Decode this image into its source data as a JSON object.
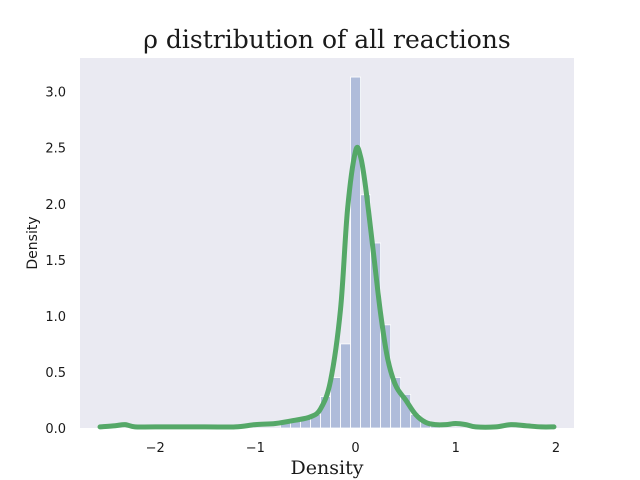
{
  "chart_data": {
    "type": "histogram",
    "title": "ρ distribution of all reactions",
    "xlabel": "Density",
    "ylabel": "Density",
    "xlim": [
      -2.75,
      2.18
    ],
    "ylim": [
      0,
      3.3
    ],
    "xticks": [
      -2,
      -1,
      0,
      1,
      2
    ],
    "xtick_labels": [
      "−2",
      "−1",
      "0",
      "1",
      "2"
    ],
    "yticks": [
      0.0,
      0.5,
      1.0,
      1.5,
      2.0,
      2.5,
      3.0
    ],
    "ytick_labels": [
      "0.0",
      "0.5",
      "1.0",
      "1.5",
      "2.0",
      "2.5",
      "3.0"
    ],
    "grid": false,
    "background": "#EAEAF2",
    "histogram": {
      "color": "#8FA3CC",
      "bins": [
        {
          "x0": -0.75,
          "x1": -0.65,
          "value": 0.06
        },
        {
          "x0": -0.65,
          "x1": -0.55,
          "value": 0.08
        },
        {
          "x0": -0.55,
          "x1": -0.45,
          "value": 0.09
        },
        {
          "x0": -0.45,
          "x1": -0.35,
          "value": 0.12
        },
        {
          "x0": -0.35,
          "x1": -0.25,
          "value": 0.28
        },
        {
          "x0": -0.25,
          "x1": -0.15,
          "value": 0.45
        },
        {
          "x0": -0.15,
          "x1": -0.05,
          "value": 0.75
        },
        {
          "x0": -0.05,
          "x1": 0.05,
          "value": 3.13
        },
        {
          "x0": 0.05,
          "x1": 0.15,
          "value": 2.08
        },
        {
          "x0": 0.15,
          "x1": 0.25,
          "value": 1.65
        },
        {
          "x0": 0.25,
          "x1": 0.35,
          "value": 0.92
        },
        {
          "x0": 0.35,
          "x1": 0.45,
          "value": 0.45
        },
        {
          "x0": 0.45,
          "x1": 0.55,
          "value": 0.3
        },
        {
          "x0": 0.55,
          "x1": 0.65,
          "value": 0.12
        },
        {
          "x0": 0.65,
          "x1": 0.75,
          "value": 0.06
        },
        {
          "x0": 0.75,
          "x1": 0.85,
          "value": 0.04
        }
      ]
    },
    "kde": {
      "color": "#55A868",
      "x": [
        -2.55,
        -2.4,
        -2.3,
        -2.2,
        -2.0,
        -1.5,
        -1.2,
        -1.0,
        -0.8,
        -0.6,
        -0.45,
        -0.35,
        -0.25,
        -0.15,
        -0.08,
        0.0,
        0.05,
        0.1,
        0.18,
        0.25,
        0.32,
        0.4,
        0.5,
        0.6,
        0.7,
        0.8,
        0.9,
        1.0,
        1.1,
        1.2,
        1.4,
        1.55,
        1.7,
        1.85,
        1.98
      ],
      "y": [
        0.01,
        0.02,
        0.03,
        0.01,
        0.01,
        0.01,
        0.01,
        0.03,
        0.04,
        0.07,
        0.1,
        0.17,
        0.42,
        1.06,
        1.95,
        2.47,
        2.42,
        2.15,
        1.55,
        1.02,
        0.62,
        0.38,
        0.25,
        0.12,
        0.05,
        0.03,
        0.03,
        0.04,
        0.03,
        0.01,
        0.01,
        0.03,
        0.02,
        0.01,
        0.01
      ]
    }
  }
}
